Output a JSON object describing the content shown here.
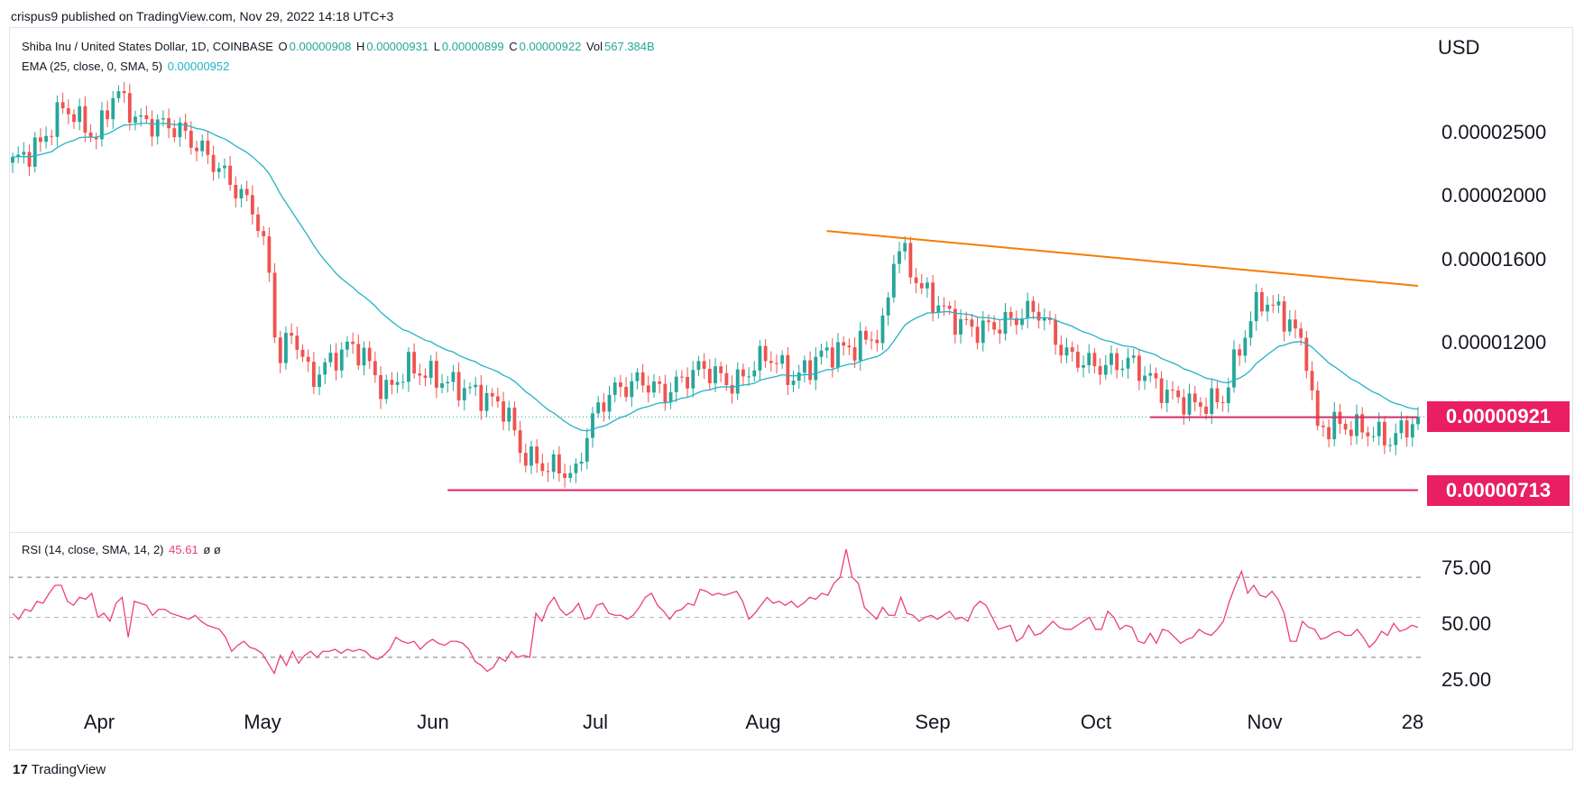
{
  "header": {
    "published": "crispus9 published on TradingView.com, Nov 29, 2022 14:18 UTC+3"
  },
  "legend": {
    "symbol": "Shiba Inu / United States Dollar, 1D, COINBASE",
    "o_key": "O",
    "o_val": "0.00000908",
    "h_key": "H",
    "h_val": "0.00000931",
    "l_key": "L",
    "l_val": "0.00000899",
    "c_key": "C",
    "c_val": "0.00000922",
    "vol_key": "Vol",
    "vol_val": "567.384B",
    "ema_label": "EMA (25, close, 0, SMA, 5)",
    "ema_val": "0.00000952",
    "rsi_label": "RSI (14, close, SMA, 14, 2)",
    "rsi_val": "45.61",
    "rsi_extra": "ø  ø"
  },
  "footer": {
    "brand": "TradingView",
    "logo": "tv-logo-icon"
  },
  "colors": {
    "up": "#26a69a",
    "down": "#ef5350",
    "ema": "#22b3c3",
    "trend": "#f57c00",
    "support": "#e91e63",
    "rsi": "#ec407a"
  },
  "chart_data": [
    {
      "type": "candlestick",
      "title": "Shiba Inu / United States Dollar, 1D, COINBASE",
      "unit_label": "USD",
      "y_scale": "log",
      "y_ticks": [
        "0.00002500",
        "0.00002000",
        "0.00001600",
        "0.00001200"
      ],
      "x_ticks": [
        "Apr",
        "May",
        "Jun",
        "Jul",
        "Aug",
        "Sep",
        "Oct",
        "Nov",
        "28"
      ],
      "price_tags": [
        "0.00000921",
        "0.00000713"
      ],
      "last_close": 9.22e-06,
      "candle_start": "2022-03-21",
      "ohlc": [],
      "ema": {
        "name": "EMA (25, close, 0, SMA, 5)",
        "last": 9.52e-06
      },
      "lines": [
        {
          "kind": "trendline",
          "from": [
            "2022-08-14",
            1.77e-05
          ],
          "to": [
            "2022-11-28",
            1.46e-05
          ]
        },
        {
          "kind": "horizontal",
          "from": [
            "2022-10-11",
            9.21e-06
          ],
          "to": [
            "2022-11-28",
            9.21e-06
          ]
        },
        {
          "kind": "horizontal",
          "from": [
            "2022-06-07",
            7.13e-06
          ],
          "to": [
            "2022-11-28",
            7.13e-06
          ]
        }
      ]
    },
    {
      "type": "line",
      "title": "RSI (14, close, SMA, 14, 2)",
      "y_ticks": [
        "75.00",
        "50.00",
        "25.00"
      ],
      "bands": [
        70,
        50,
        30
      ],
      "last": 45.61,
      "values": [
        52,
        49,
        54,
        53,
        58,
        57,
        62,
        66,
        66,
        58,
        56,
        60,
        59,
        62,
        50,
        52,
        48,
        57,
        60,
        40,
        58,
        57,
        56,
        51,
        54,
        54,
        52,
        51,
        50,
        49,
        51,
        48,
        46,
        45,
        44,
        40,
        33,
        36,
        38,
        35,
        34,
        32,
        27,
        22,
        31,
        26,
        33,
        27,
        31,
        33,
        30,
        33,
        33,
        34,
        32,
        34,
        33,
        34,
        33,
        30,
        29,
        31,
        34,
        40,
        38,
        37,
        38,
        34,
        37,
        39,
        37,
        36,
        38,
        38,
        37,
        34,
        28,
        26,
        23,
        25,
        30,
        28,
        33,
        30,
        31,
        30,
        52,
        48,
        56,
        60,
        54,
        51,
        53,
        57,
        49,
        50,
        56,
        57,
        52,
        51,
        51,
        49,
        51,
        55,
        60,
        62,
        56,
        53,
        49,
        53,
        54,
        57,
        56,
        64,
        63,
        61,
        62,
        61,
        62,
        63,
        58,
        49,
        52,
        56,
        60,
        57,
        58,
        56,
        58,
        55,
        57,
        60,
        59,
        62,
        61,
        67,
        70,
        84,
        70,
        67,
        55,
        52,
        49,
        55,
        51,
        51,
        60,
        52,
        51,
        48,
        50,
        51,
        49,
        51,
        53,
        49,
        50,
        48,
        55,
        58,
        56,
        50,
        44,
        45,
        46,
        38,
        40,
        46,
        41,
        42,
        45,
        48,
        45,
        44,
        44,
        46,
        48,
        50,
        44,
        44,
        53,
        50,
        44,
        46,
        45,
        38,
        37,
        42,
        37,
        44,
        43,
        40,
        37,
        39,
        40,
        44,
        42,
        41,
        44,
        48,
        58,
        66,
        73,
        62,
        66,
        61,
        60,
        63,
        59,
        52,
        38,
        38,
        48,
        45,
        44,
        39,
        40,
        42,
        43,
        41,
        41,
        44,
        40,
        35,
        38,
        43,
        41,
        47,
        43,
        44,
        46,
        45
      ]
    }
  ]
}
